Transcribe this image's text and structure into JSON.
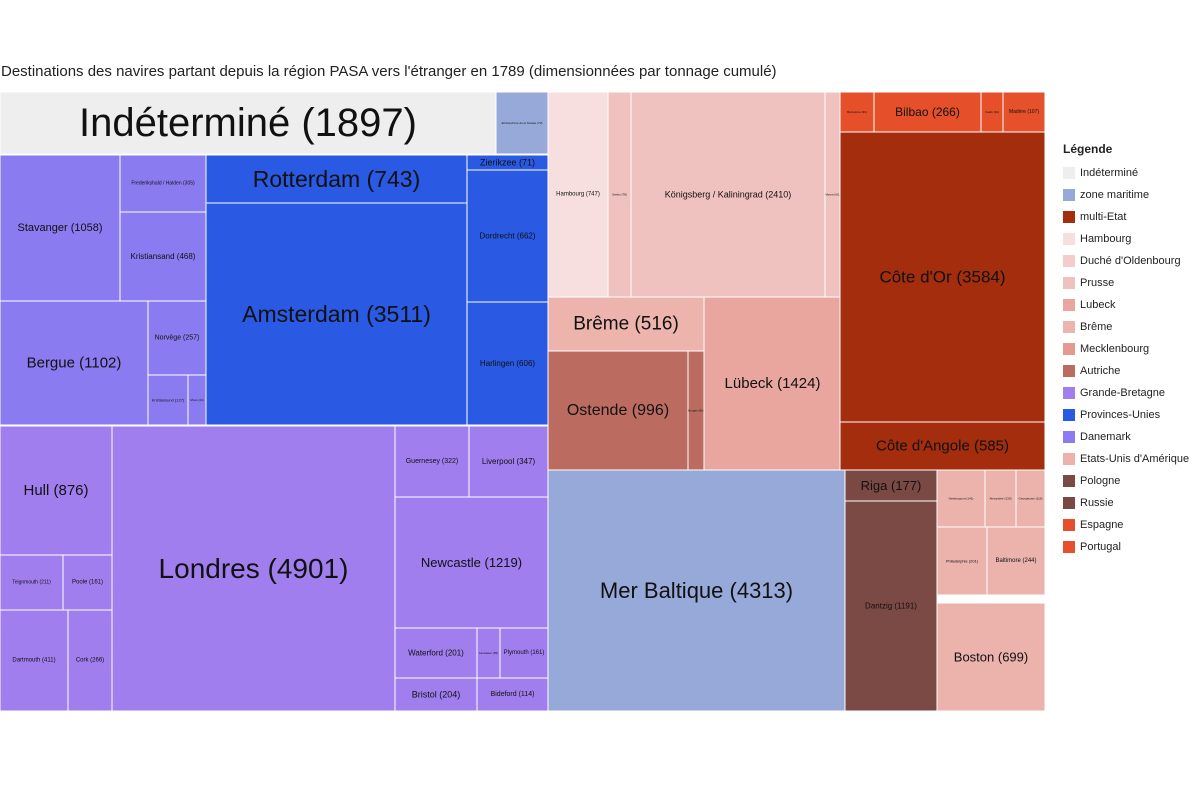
{
  "chart_data": {
    "type": "treemap",
    "title": "Destinations des navires partant depuis la région PASA vers l'étranger en 1789 (dimensionnées par tonnage cumulé)",
    "legend": {
      "title": "Légende",
      "placement": "right",
      "entries": [
        {
          "label": "Indéterminé",
          "color": "#eeeeee"
        },
        {
          "label": "zone maritime",
          "color": "#97a9d9"
        },
        {
          "label": "multi-Etat",
          "color": "#a32d0d"
        },
        {
          "label": "Hambourg",
          "color": "#f7dfdf"
        },
        {
          "label": "Duché d'Oldenbourg",
          "color": "#f4cccc"
        },
        {
          "label": "Prusse",
          "color": "#efc2bf"
        },
        {
          "label": "Lubeck",
          "color": "#e9a69f"
        },
        {
          "label": "Brême",
          "color": "#edb4ad"
        },
        {
          "label": "Mecklenbourg",
          "color": "#e59990"
        },
        {
          "label": "Autriche",
          "color": "#bc6b61"
        },
        {
          "label": "Grande-Bretagne",
          "color": "#a07eee"
        },
        {
          "label": "Provinces-Unies",
          "color": "#2a59e3"
        },
        {
          "label": "Danemark",
          "color": "#8a7bf0"
        },
        {
          "label": "Etats-Unis d'Amérique",
          "color": "#ebb3ac"
        },
        {
          "label": "Pologne",
          "color": "#7b4a45"
        },
        {
          "label": "Russie",
          "color": "#7a4944"
        },
        {
          "label": "Espagne",
          "color": "#e5502b"
        },
        {
          "label": "Portugal",
          "color": "#e5512b"
        }
      ]
    },
    "nodes": [
      {
        "label": "Indéterminé (1897)",
        "group": "Indéterminé",
        "value": 1897
      },
      {
        "label": "Embouchure de la Tamise (70)",
        "group": "zone maritime",
        "value": 70
      },
      {
        "label": "Stavanger (1058)",
        "group": "Danemark",
        "value": 1058
      },
      {
        "label": "Frederikshald / Halden (305)",
        "group": "Danemark",
        "value": 305
      },
      {
        "label": "Kristiansand (468)",
        "group": "Danemark",
        "value": 468
      },
      {
        "label": "Bergue (1102)",
        "group": "Danemark",
        "value": 1102
      },
      {
        "label": "Norvège (257)",
        "group": "Danemark",
        "value": 257
      },
      {
        "label": "Kristiansund (127)",
        "group": "Danemark",
        "value": 127
      },
      {
        "label": "Moss (44)",
        "group": "Danemark",
        "value": 44
      },
      {
        "label": "Rotterdam (743)",
        "group": "Provinces-Unies",
        "value": 743
      },
      {
        "label": "Amsterdam (3511)",
        "group": "Provinces-Unies",
        "value": 3511
      },
      {
        "label": "Zierikzee (71)",
        "group": "Provinces-Unies",
        "value": 71
      },
      {
        "label": "Dordrecht (662)",
        "group": "Provinces-Unies",
        "value": 662
      },
      {
        "label": "Harlingen (606)",
        "group": "Provinces-Unies",
        "value": 606
      },
      {
        "label": "Hull (876)",
        "group": "Grande-Bretagne",
        "value": 876
      },
      {
        "label": "Teignmouth (211)",
        "group": "Grande-Bretagne",
        "value": 211
      },
      {
        "label": "Poole (161)",
        "group": "Grande-Bretagne",
        "value": 161
      },
      {
        "label": "Dartmouth (411)",
        "group": "Grande-Bretagne",
        "value": 411
      },
      {
        "label": "Cork (266)",
        "group": "Grande-Bretagne",
        "value": 266
      },
      {
        "label": "Londres (4901)",
        "group": "Grande-Bretagne",
        "value": 4901
      },
      {
        "label": "Guernesey (322)",
        "group": "Grande-Bretagne",
        "value": 322
      },
      {
        "label": "Liverpool (347)",
        "group": "Grande-Bretagne",
        "value": 347
      },
      {
        "label": "Newcastle (1219)",
        "group": "Grande-Bretagne",
        "value": 1219
      },
      {
        "label": "Waterford (201)",
        "group": "Grande-Bretagne",
        "value": 201
      },
      {
        "label": "Lancaster (65)",
        "group": "Grande-Bretagne",
        "value": 65
      },
      {
        "label": "Plymouth (161)",
        "group": "Grande-Bretagne",
        "value": 161
      },
      {
        "label": "Bristol (204)",
        "group": "Grande-Bretagne",
        "value": 204
      },
      {
        "label": "Bideford (114)",
        "group": "Grande-Bretagne",
        "value": 114
      },
      {
        "label": "Hambourg (747)",
        "group": "Hambourg",
        "value": 747
      },
      {
        "label": "Stettin (78)",
        "group": "Prusse",
        "value": 78
      },
      {
        "label": "Königsberg / Kaliningrad (2410)",
        "group": "Prusse",
        "value": 2410
      },
      {
        "label": "Memel (61)",
        "group": "Prusse",
        "value": 61
      },
      {
        "label": "Brême (516)",
        "group": "Brême",
        "value": 516
      },
      {
        "label": "Ostende (996)",
        "group": "Autriche",
        "value": 996
      },
      {
        "label": "Bruges (56)",
        "group": "Autriche",
        "value": 56
      },
      {
        "label": "Lübeck (1424)",
        "group": "Lubeck",
        "value": 1424
      },
      {
        "label": "Mer Baltique (4313)",
        "group": "zone maritime",
        "value": 4313
      },
      {
        "label": "Barcelone (90)",
        "group": "Espagne",
        "value": 90
      },
      {
        "label": "Bilbao (266)",
        "group": "Espagne",
        "value": 266
      },
      {
        "label": "Cadix (40)",
        "group": "Espagne",
        "value": 40
      },
      {
        "label": "Madère (107)",
        "group": "Portugal",
        "value": 107
      },
      {
        "label": "Côte d'Or (3584)",
        "group": "multi-Etat",
        "value": 3584
      },
      {
        "label": "Côte d'Angole (585)",
        "group": "multi-Etat",
        "value": 585
      },
      {
        "label": "Riga (177)",
        "group": "Russie",
        "value": 177
      },
      {
        "label": "Dantzig (1191)",
        "group": "Pologne",
        "value": 1191
      },
      {
        "label": "Newburyport (141)",
        "group": "Etats-Unis d'Amérique",
        "value": 141
      },
      {
        "label": "Alexandrie (130)",
        "group": "Etats-Unis d'Amérique",
        "value": 130
      },
      {
        "label": "Georgetown (119)",
        "group": "Etats-Unis d'Amérique",
        "value": 119
      },
      {
        "label": "Philadelphie (201)",
        "group": "Etats-Unis d'Amérique",
        "value": 201
      },
      {
        "label": "Baltimore (244)",
        "group": "Etats-Unis d'Amérique",
        "value": 244
      },
      {
        "label": "Boston (699)",
        "group": "Etats-Unis d'Amérique",
        "value": 699
      }
    ]
  }
}
